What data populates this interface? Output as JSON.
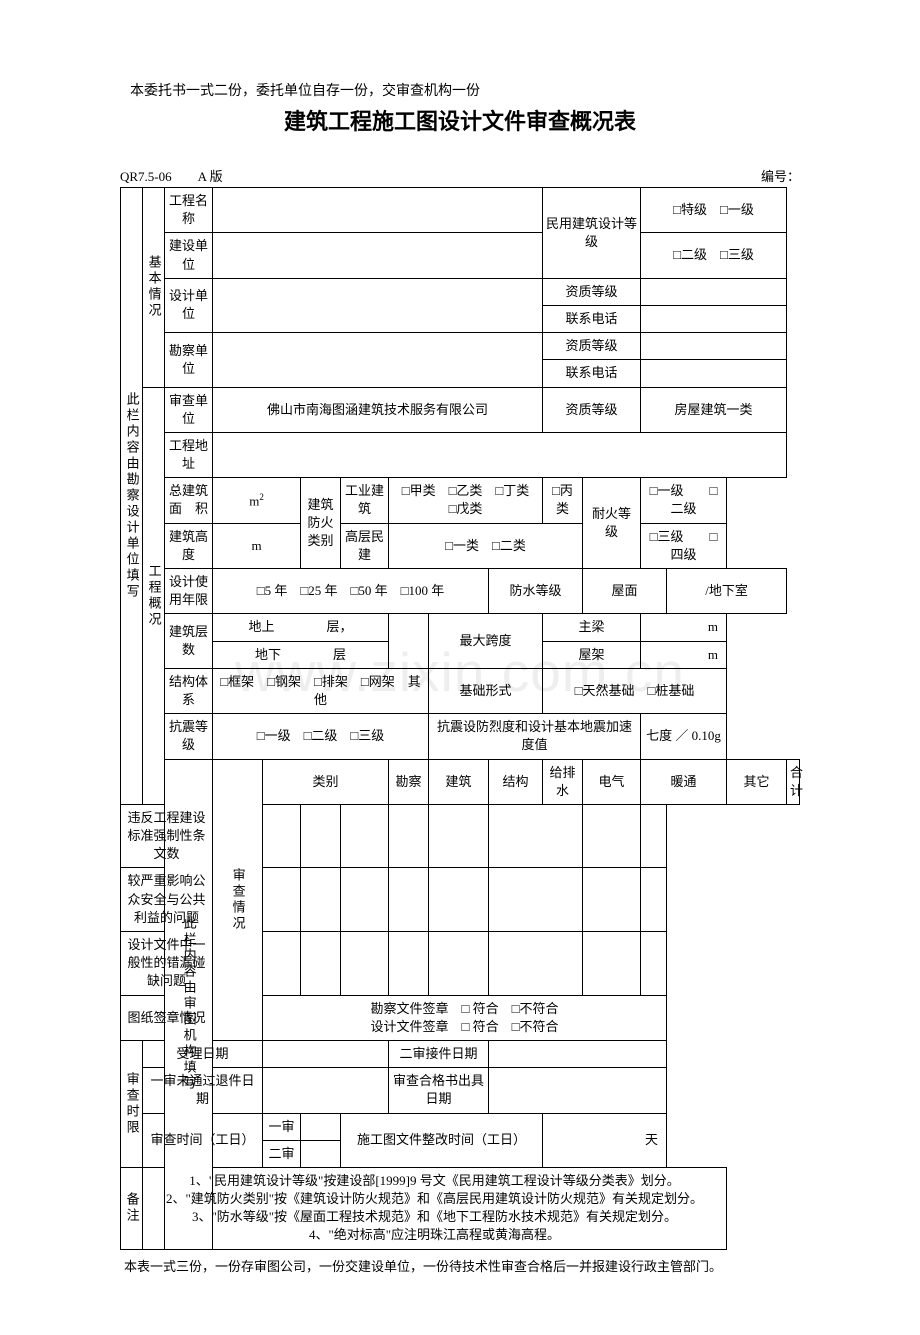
{
  "preNote": "本委托书一式二份，委托单位自存一份，交审查机构一份",
  "title": "建筑工程施工图设计文件审查概况表",
  "formCode": "QR7.5-06",
  "version": "A 版",
  "serialLabel": "编号：",
  "sideLabel1": "此栏内容由勘察设计单位填写",
  "sideLabel2": "此栏内容由审图机构填写",
  "sec1Label": "基本情况",
  "row": {
    "projName": "工程名称",
    "buildUnit": "建设单位",
    "civilGrade": "民用建筑设计等级",
    "gradeOpts1": "□特级　□一级",
    "gradeOpts2": "□二级　□三级",
    "designUnit": "设计单位",
    "qualGrade": "资质等级",
    "phone": "联系电话",
    "surveyUnit": "勘察单位",
    "reviewUnit": "审查单位",
    "reviewUnitVal": "佛山市南海图涵建筑技术服务有限公司",
    "houseClass": "房屋建筑一类"
  },
  "sec2Label": "工程概况",
  "r2": {
    "projAddr": "工程地址",
    "totalArea": "总建筑面　积",
    "m2": "m",
    "fireClass": "建筑防火类别",
    "industrial": "工业建筑",
    "indOpts": "□甲类　□乙类　□丁类　□戊类",
    "catC": "□丙类",
    "fireResist": "耐火等级",
    "fire12": "□一级　　□二级",
    "fire34": "□三级　　□四级",
    "height": "建筑高度",
    "m": "m",
    "highrise": "高层民建",
    "hrOpts": "□一类　□二类",
    "useLife": "设计使用年限",
    "lifeOpts": "□5 年　□25 年　□50 年　□100 年",
    "waterproof": "防水等级",
    "roof": "屋面",
    "basement": "/地下室",
    "floors": "建筑层数",
    "floorsVal1": "地上　　　　层，",
    "floorsVal2": "地下　　　　层",
    "maxSpan": "最大跨度",
    "beam": "主梁",
    "truss": "屋架",
    "mUnit": "m",
    "structType": "结构体系",
    "structOpts": "□框架　□钢架　□排架　□网架　其他",
    "foundation": "基础形式",
    "foundOpts": "□天然基础　□桩基础",
    "seismic": "抗震等级",
    "seisOpts": "□一级　□二级　□三级",
    "seisIntensity": "抗震设防烈度和设计基本地震加速度值",
    "seisVal": "七度 ／ 0.10g"
  },
  "sec3Label": "审查情况",
  "r3": {
    "category": "类别",
    "survey": "勘察",
    "arch": "建筑",
    "struct": "结构",
    "plumb": "给排水",
    "elec": "电气",
    "hvac": "暖通",
    "other": "其它",
    "total": "合计",
    "mand": "违反工程建设标准强制性条文数",
    "safety": "较严重影响公众安全与公共利益的问题",
    "defects": "设计文件中一般性的错漏碰缺问题",
    "stamp": "图纸签章情况",
    "stampSurvey": "勘察文件签章　□ 符合　□不符合",
    "stampDesign": "设计文件签章　□ 符合　□不符合"
  },
  "sec4Label": "审查时限",
  "r4": {
    "acceptDate": "受理日期",
    "secondDate": "二审接件日期",
    "returnDate": "一审未通过退件日期",
    "passDate": "审查合格书出具日期",
    "reviewTime": "审查时间（工日）",
    "first": "一审",
    "second": "二审",
    "rectTime": "施工图文件整改时间（工日）",
    "days": "天"
  },
  "remarksLabel": "备注",
  "remarks": "1、\"民用建筑设计等级\"按建设部[1999]9 号文《民用建筑工程设计等级分类表》划分。\n2、\"建筑防火类别\"按《建筑设计防火规范》和《高层民用建筑设计防火规范》有关规定划分。\n3、\"防水等级\"按《屋面工程技术规范》和《地下工程防水技术规范》有关规定划分。\n4、\"绝对标高\"应注明珠江高程或黄海高程。",
  "postNote": "本表一式三份，一份存审图公司，一份交建设单位，一份待技术性审查合格后一并报建设行政主管部门。"
}
